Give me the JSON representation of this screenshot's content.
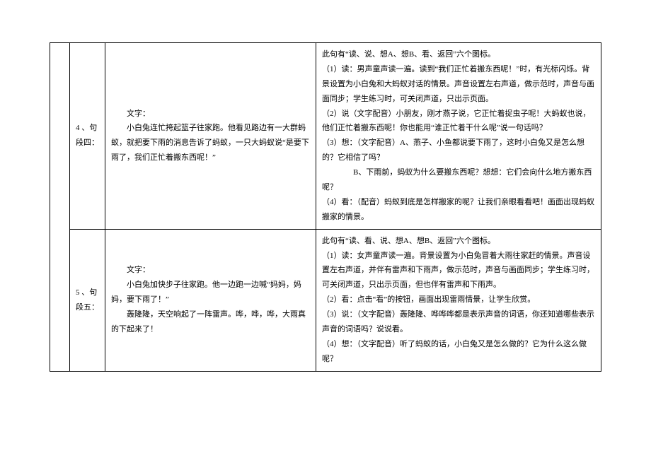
{
  "table": {
    "rows": [
      {
        "label": "4 、句段四：",
        "left": {
          "heading": "文字：",
          "para": "小白兔连忙挎起篮子往家跑。他看见路边有一大群蚂蚁，就把要下雨的消息告诉了蚂蚁，一只大蚂蚁说“是要下雨了，我们正忙着搬东西呢！”"
        },
        "right": [
          "此句有“读、说、想A、想B、看、返回”六个图标。",
          "（1）读：男声童声读一遍。读到“我们正忙着搬东西呢！”时，有光标闪烁。背景设置为小白兔和大蚂蚁对话的情景。声音设置左右声道，做示范时，声音与画面同步；学生练习时，可关闭声道，只出示页面。",
          "（2）说（文字配音）小朋友，刚才燕子说，它正忙着捉虫子呢！大蚂蚁也说，他们正忙着搬东西呢！你也能用“谁正忙着干什么呢”说一句话吗？",
          "（3）想：（文字配音）A、燕子、小鱼都说要下雨了，这时小白兔又是怎么想的？它相信了吗？",
          "　　　　B、下雨前，蚂蚁为什么要搬东西呢？想想：它们会向什么地方搬东西呢？",
          "（4）看：（配音）蚂蚁到底是怎样搬家的呢？让我们亲眼看看吧！画面出现蚂蚁搬家的情景。"
        ]
      },
      {
        "label": "5 、句段五：",
        "left": {
          "heading": "文字：",
          "para1": "小白兔加快步子往家跑。他一边跑一边喊“妈妈，妈妈，要下雨了！”",
          "para2": "轰隆隆，天空响起了一阵雷声。哗，哗，哗，大雨真的下起来了！"
        },
        "right": [
          "此句有“读、看、说、想A、想B、返回”六个图标。",
          "（1）读：女声童声读一遍。背景设置为小白兔冒着大雨往家赶的情景。声音设置左右声道，并伴有雷声和下雨声，做示范时，声音与画面同步；学生练习时，可关闭声道，只出示页面，但也伴有雷声和下雨声。",
          "（2）看：点击“看”的按钮，画面出现雷雨情景，让学生欣赏。",
          "（3）说：（文字配音）轰隆隆、哗哗哗都是表示声音的词语，你还知道哪些表示声音的词语吗？说说看。",
          "（4）想：（文字配音）听了蚂蚁的话，小白兔又是怎么做的？它为什么这么做呢？"
        ]
      }
    ]
  },
  "colors": {
    "border": "#000000",
    "text": "#000000",
    "background": "#ffffff"
  },
  "typography": {
    "font_family": "SimSun",
    "font_size_pt": 8,
    "line_height": 1.9
  }
}
